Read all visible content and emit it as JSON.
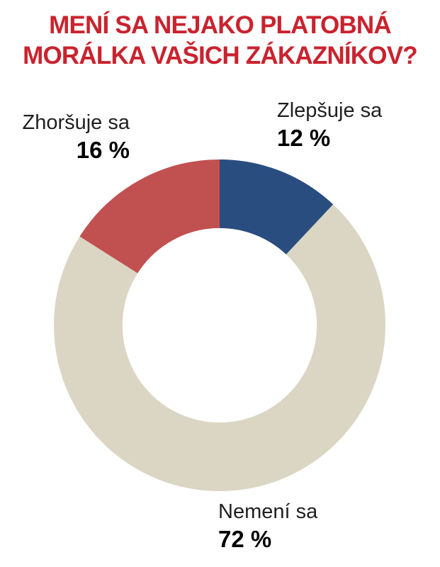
{
  "title": {
    "line1": "MENÍ SA NEJAKO PLATOBNÁ",
    "line2": "MORÁLKA VAŠICH ZÁKAZNÍKOV?",
    "color": "#c9232e"
  },
  "chart_data": {
    "type": "pie",
    "subtype": "donut",
    "title": "MENÍ SA NEJAKO PLATOBNÁ MORÁLKA VAŠICH ZÁKAZNÍKOV?",
    "unit": "%",
    "direction": "clockwise",
    "start_angle_deg": 0,
    "inner_radius_ratio": 0.586,
    "legend_position": "labels-around-chart",
    "background_color": "#ffffff",
    "segments": [
      {
        "label": "Zlepšuje sa",
        "value": 12,
        "display_value": "12 %",
        "color": "#2a4d80"
      },
      {
        "label": "Nemení sa",
        "value": 72,
        "display_value": "72 %",
        "color": "#dbd6c4"
      },
      {
        "label": "Zhoršuje sa",
        "value": 16,
        "display_value": "16 %",
        "color": "#c15150"
      }
    ]
  }
}
